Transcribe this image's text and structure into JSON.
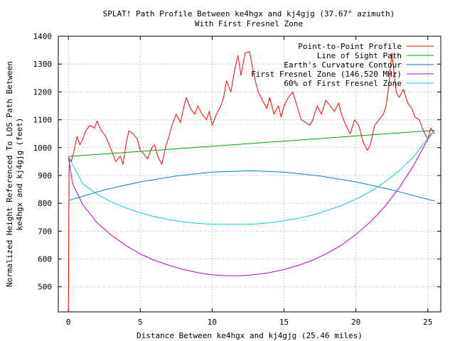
{
  "chart_data": {
    "type": "line",
    "title_lines": [
      "SPLAT! Path Profile Between ke4hgx and kj4gjg (37.67° azimuth)",
      "With First Fresnel Zone"
    ],
    "xlabel": "Distance Between ke4hgx and kj4gjg (25.46 miles)",
    "ylabel_lines": [
      "Normalized Height Referenced To LOS Path Between",
      "ke4hgx and kj4gjg (feet)"
    ],
    "xlim": [
      -0.7,
      25.9
    ],
    "ylim": [
      410,
      1400
    ],
    "x_ticks": [
      0,
      5,
      10,
      15,
      20,
      25
    ],
    "x_tick_labels": [
      "0",
      "5",
      "10",
      "15",
      "20",
      "25"
    ],
    "y_ticks": [
      500,
      600,
      700,
      800,
      900,
      1000,
      1100,
      1200,
      1300,
      1400
    ],
    "y_tick_labels": [
      "500",
      "600",
      "700",
      "800",
      "900",
      "1000",
      "1100",
      "1200",
      "1300",
      "1400"
    ],
    "grid": true,
    "legend_position": "top-right",
    "path_length_miles": 25.46,
    "series": [
      {
        "name": "Point-to-Point Profile",
        "color": "#ff0000",
        "x": [
          0,
          0.05,
          0.1,
          0.2,
          0.4,
          0.6,
          0.8,
          1.0,
          1.2,
          1.5,
          1.8,
          2.0,
          2.3,
          2.6,
          3.0,
          3.3,
          3.6,
          3.8,
          4.0,
          4.2,
          4.5,
          4.8,
          5.0,
          5.2,
          5.5,
          5.8,
          6.0,
          6.2,
          6.5,
          6.8,
          7.0,
          7.2,
          7.5,
          7.8,
          8.0,
          8.2,
          8.5,
          8.8,
          9.0,
          9.3,
          9.6,
          9.8,
          10.0,
          10.3,
          10.6,
          10.8,
          11.0,
          11.3,
          11.6,
          11.8,
          12.0,
          12.3,
          12.6,
          12.8,
          13.0,
          13.2,
          13.5,
          13.8,
          14.0,
          14.3,
          14.6,
          14.8,
          15.0,
          15.3,
          15.6,
          15.9,
          16.2,
          16.5,
          16.8,
          17.0,
          17.3,
          17.6,
          17.9,
          18.2,
          18.5,
          18.8,
          19.0,
          19.3,
          19.6,
          19.9,
          20.2,
          20.5,
          20.8,
          21.0,
          21.3,
          21.6,
          21.9,
          22.1,
          22.3,
          22.5,
          22.8,
          23.0,
          23.3,
          23.6,
          23.9,
          24.1,
          24.4,
          24.7,
          25.0,
          25.2,
          25.46
        ],
        "values": [
          410,
          930,
          960,
          950,
          990,
          1040,
          1010,
          1030,
          1060,
          1080,
          1070,
          1095,
          1060,
          1040,
          990,
          950,
          970,
          940,
          1010,
          1060,
          1050,
          1030,
          990,
          980,
          960,
          1000,
          1010,
          970,
          940,
          1010,
          1040,
          1080,
          1120,
          1090,
          1140,
          1180,
          1140,
          1120,
          1150,
          1120,
          1100,
          1130,
          1080,
          1120,
          1150,
          1180,
          1240,
          1200,
          1290,
          1330,
          1260,
          1340,
          1345,
          1290,
          1240,
          1200,
          1170,
          1140,
          1180,
          1120,
          1150,
          1110,
          1150,
          1180,
          1200,
          1150,
          1100,
          1090,
          1080,
          1100,
          1150,
          1120,
          1170,
          1150,
          1130,
          1160,
          1120,
          1080,
          1050,
          1100,
          1080,
          1020,
          990,
          1010,
          1080,
          1100,
          1120,
          1150,
          1230,
          1340,
          1200,
          1180,
          1210,
          1160,
          1140,
          1110,
          1100,
          1060,
          1030,
          1070,
          1050
        ]
      },
      {
        "name": "Line of Sight Path",
        "color": "#00a000",
        "x": [
          0,
          25.46
        ],
        "values": [
          968,
          1062
        ]
      },
      {
        "name": "Earth's Curvature Contour",
        "color": "#0080c0",
        "x": [
          0,
          2.5,
          5,
          7.5,
          10,
          12.73,
          15,
          17.5,
          20,
          22.5,
          25.46
        ],
        "values": [
          810,
          848,
          877,
          898,
          912,
          917,
          912,
          898,
          877,
          848,
          808
        ]
      },
      {
        "name": "First Fresnel Zone (146.520 MHz)",
        "color": "#c000c0",
        "x": [
          0,
          0.3,
          1,
          2,
          3,
          4,
          5,
          6,
          7,
          8,
          9,
          10,
          11,
          12,
          13,
          14,
          15,
          16,
          17,
          18,
          19,
          20,
          21,
          22,
          23,
          24,
          25,
          25.46
        ],
        "values": [
          968,
          870,
          795,
          730,
          685,
          648,
          618,
          595,
          577,
          562,
          551,
          543,
          540,
          540,
          544,
          551,
          562,
          577,
          596,
          620,
          650,
          688,
          733,
          788,
          855,
          935,
          1030,
          1062
        ]
      },
      {
        "name": "60% of First Fresnel Zone",
        "color": "#00d0d0",
        "x": [
          0,
          1,
          2,
          3,
          4,
          5,
          6,
          7,
          8,
          9,
          10,
          11,
          12,
          13,
          14,
          15,
          16,
          17,
          18,
          19,
          20,
          21,
          22,
          23,
          24,
          25,
          25.46
        ],
        "values": [
          968,
          870,
          832,
          805,
          783,
          766,
          752,
          741,
          733,
          728,
          725,
          724,
          724,
          726,
          730,
          737,
          746,
          758,
          774,
          792,
          815,
          842,
          876,
          916,
          966,
          1034,
          1062
        ]
      }
    ]
  }
}
